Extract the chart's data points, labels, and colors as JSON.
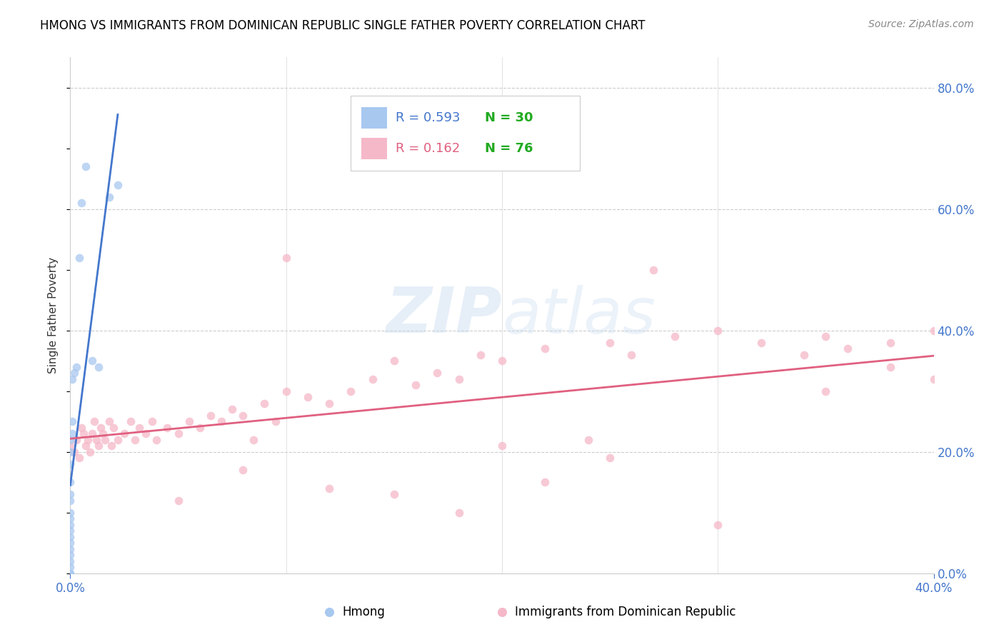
{
  "title": "HMONG VS IMMIGRANTS FROM DOMINICAN REPUBLIC SINGLE FATHER POVERTY CORRELATION CHART",
  "source": "Source: ZipAtlas.com",
  "ylabel": "Single Father Poverty",
  "legend_label1": "Hmong",
  "legend_label2": "Immigrants from Dominican Republic",
  "r1": 0.593,
  "n1": 30,
  "r2": 0.162,
  "n2": 76,
  "color_blue": "#A8C8F0",
  "color_blue_line": "#4477CC",
  "color_pink": "#F5B8C8",
  "color_pink_line": "#E06080",
  "watermark_zip": "ZIP",
  "watermark_atlas": "atlas",
  "xlim": [
    0.0,
    0.4
  ],
  "ylim": [
    0.0,
    0.85
  ],
  "hmong_x": [
    0.0,
    0.0,
    0.0,
    0.0,
    0.0,
    0.0,
    0.0,
    0.0,
    0.0,
    0.0,
    0.0,
    0.0,
    0.0,
    0.0,
    0.0,
    0.0,
    0.0,
    0.0,
    0.001,
    0.001,
    0.001,
    0.002,
    0.003,
    0.004,
    0.005,
    0.007,
    0.01,
    0.013,
    0.018,
    0.022
  ],
  "hmong_y": [
    0.0,
    0.0,
    0.01,
    0.02,
    0.03,
    0.04,
    0.05,
    0.06,
    0.07,
    0.08,
    0.09,
    0.1,
    0.12,
    0.13,
    0.15,
    0.18,
    0.2,
    0.22,
    0.23,
    0.25,
    0.32,
    0.33,
    0.34,
    0.52,
    0.61,
    0.67,
    0.35,
    0.34,
    0.62,
    0.64
  ],
  "dr_x": [
    0.0,
    0.002,
    0.003,
    0.004,
    0.005,
    0.006,
    0.007,
    0.008,
    0.009,
    0.01,
    0.011,
    0.012,
    0.013,
    0.014,
    0.015,
    0.016,
    0.018,
    0.019,
    0.02,
    0.022,
    0.025,
    0.028,
    0.03,
    0.032,
    0.035,
    0.038,
    0.04,
    0.045,
    0.05,
    0.055,
    0.06,
    0.065,
    0.07,
    0.075,
    0.08,
    0.085,
    0.09,
    0.095,
    0.1,
    0.11,
    0.12,
    0.13,
    0.14,
    0.15,
    0.16,
    0.17,
    0.18,
    0.19,
    0.2,
    0.22,
    0.24,
    0.25,
    0.26,
    0.28,
    0.3,
    0.32,
    0.34,
    0.35,
    0.36,
    0.38,
    0.4,
    0.4,
    0.38,
    0.35,
    0.1,
    0.27,
    0.15,
    0.22,
    0.08,
    0.05,
    0.12,
    0.18,
    0.3,
    0.25,
    0.2,
    0.42
  ],
  "dr_y": [
    0.21,
    0.2,
    0.22,
    0.19,
    0.24,
    0.23,
    0.21,
    0.22,
    0.2,
    0.23,
    0.25,
    0.22,
    0.21,
    0.24,
    0.23,
    0.22,
    0.25,
    0.21,
    0.24,
    0.22,
    0.23,
    0.25,
    0.22,
    0.24,
    0.23,
    0.25,
    0.22,
    0.24,
    0.23,
    0.25,
    0.24,
    0.26,
    0.25,
    0.27,
    0.26,
    0.22,
    0.28,
    0.25,
    0.3,
    0.29,
    0.28,
    0.3,
    0.32,
    0.35,
    0.31,
    0.33,
    0.32,
    0.36,
    0.35,
    0.37,
    0.22,
    0.38,
    0.36,
    0.39,
    0.4,
    0.38,
    0.36,
    0.39,
    0.37,
    0.38,
    0.4,
    0.32,
    0.34,
    0.3,
    0.52,
    0.5,
    0.13,
    0.15,
    0.17,
    0.12,
    0.14,
    0.1,
    0.08,
    0.19,
    0.21,
    0.27
  ]
}
